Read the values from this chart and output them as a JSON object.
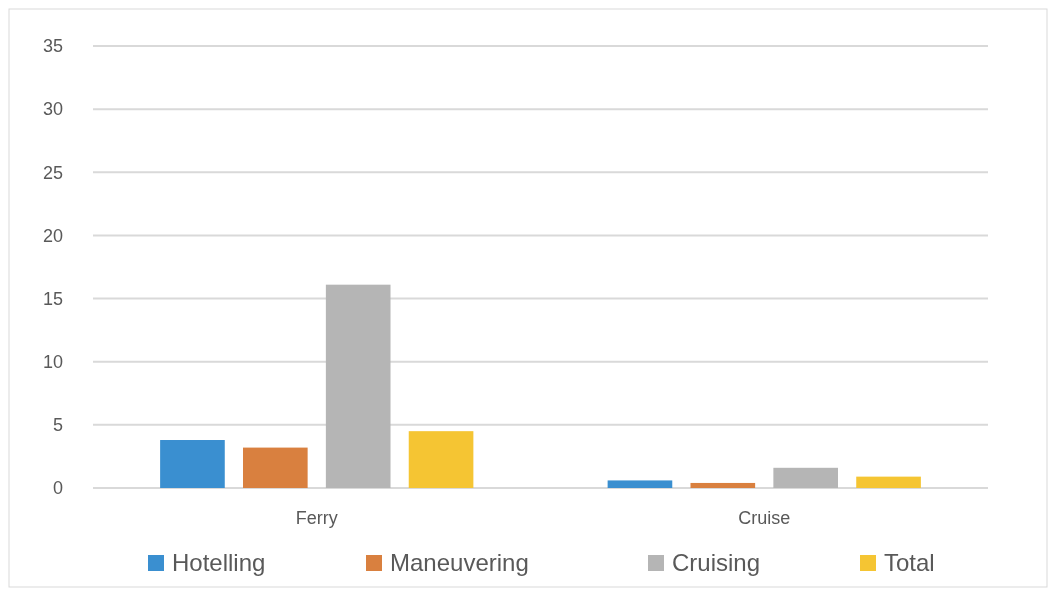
{
  "chart_data": {
    "type": "bar",
    "categories": [
      "Ferry",
      "Cruise"
    ],
    "series": [
      {
        "name": "Hotelling",
        "color": "#3a8fd0",
        "values": [
          3.8,
          0.6
        ]
      },
      {
        "name": "Maneuvering",
        "color": "#d9803f",
        "values": [
          3.2,
          0.4
        ]
      },
      {
        "name": "Cruising",
        "color": "#b5b5b5",
        "values": [
          16.1,
          1.6
        ]
      },
      {
        "name": "Total",
        "color": "#f5c533",
        "values": [
          4.5,
          0.9
        ]
      }
    ],
    "ylim": [
      0,
      35
    ],
    "yticks": [
      0,
      5,
      10,
      15,
      20,
      25,
      30,
      35
    ],
    "grid": "y",
    "legend": "bottom"
  }
}
